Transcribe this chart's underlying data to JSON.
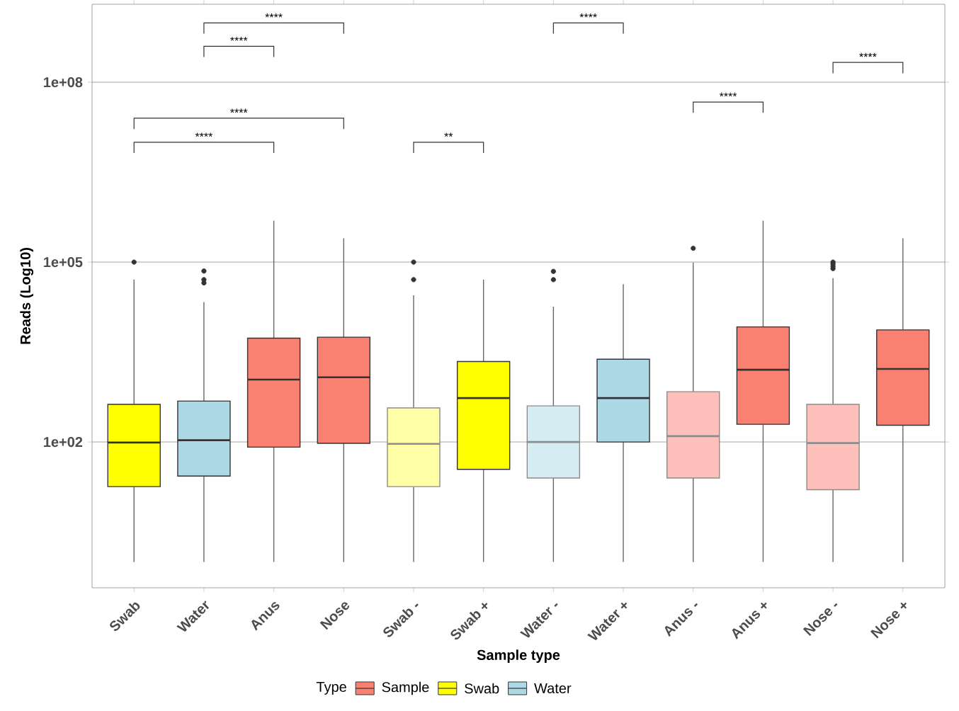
{
  "chart_data": {
    "type": "box",
    "xlabel": "Sample type",
    "ylabel": "Reads (Log10)",
    "legend_title": "Type",
    "legend": "bottom",
    "log": "y",
    "grid": "y",
    "categories": [
      "Swab",
      "Water",
      "Anus",
      "Nose",
      "Swab -",
      "Swab +",
      "Water -",
      "Water +",
      "Anus -",
      "Anus +",
      "Nose -",
      "Nose +"
    ],
    "ylim": [
      0.37,
      2000000000
    ],
    "yticks": [
      {
        "value": 100,
        "label": "1e+02"
      },
      {
        "value": 100000,
        "label": "1e+05"
      },
      {
        "value": 100000000,
        "label": "1e+08"
      }
    ],
    "annotations": [
      "****",
      "****",
      "****",
      "****",
      "**",
      "****",
      "****",
      "****"
    ],
    "series": [
      {
        "name": "Sample",
        "color": "#fa8072",
        "colors": [
          null,
          null,
          "#fa8072",
          "#fa8072",
          null,
          null,
          null,
          null,
          "#fdc0bb",
          "#fa8072",
          "#fdc0bb",
          "#fa8072"
        ],
        "boxes": [
          null,
          null,
          {
            "low": 1,
            "q1": 82,
            "median": 1100,
            "q3": 5400,
            "high": 490000
          },
          {
            "low": 1,
            "q1": 95,
            "median": 1200,
            "q3": 5600,
            "high": 250000
          },
          null,
          null,
          null,
          null,
          {
            "low": 1,
            "q1": 25,
            "median": 125,
            "q3": 690,
            "high": 98000,
            "outliers": [
              170000
            ]
          },
          {
            "low": 1,
            "q1": 197,
            "median": 1600,
            "q3": 8300,
            "high": 490000
          },
          {
            "low": 1,
            "q1": 16,
            "median": 96,
            "q3": 424,
            "high": 54000,
            "outliers": [
              78000,
              85000,
              93000,
              100000
            ]
          },
          {
            "low": 1,
            "q1": 190,
            "median": 1650,
            "q3": 7400,
            "high": 250000
          }
        ]
      },
      {
        "name": "Swab",
        "color": "#ffff00",
        "colors": [
          "#ffff00",
          null,
          null,
          null,
          "#ffffa8",
          "#ffff00",
          null,
          null,
          null,
          null,
          null,
          null
        ],
        "boxes": [
          {
            "low": 1,
            "q1": 18,
            "median": 98,
            "q3": 424,
            "high": 51000,
            "outliers": [
              100000
            ]
          },
          null,
          null,
          null,
          {
            "low": 1,
            "q1": 18,
            "median": 93,
            "q3": 370,
            "high": 28000,
            "outliers": [
              51000,
              100000
            ]
          },
          {
            "low": 1,
            "q1": 35,
            "median": 540,
            "q3": 2200,
            "high": 51000
          },
          null,
          null,
          null,
          null,
          null,
          null
        ]
      },
      {
        "name": "Water",
        "color": "#add8e6",
        "colors": [
          null,
          "#add8e6",
          null,
          null,
          null,
          null,
          "#d6ecf3",
          "#add8e6",
          null,
          null,
          null,
          null
        ],
        "boxes": [
          null,
          {
            "low": 1,
            "q1": 27,
            "median": 107,
            "q3": 480,
            "high": 21500,
            "outliers": [
              45000,
              51000,
              71000
            ]
          },
          null,
          null,
          null,
          null,
          {
            "low": 1,
            "q1": 25,
            "median": 100,
            "q3": 400,
            "high": 18000,
            "outliers": [
              51000,
              70000
            ]
          },
          {
            "low": 1,
            "q1": 100,
            "median": 540,
            "q3": 2400,
            "high": 43000
          },
          null,
          null,
          null,
          null
        ]
      }
    ]
  }
}
